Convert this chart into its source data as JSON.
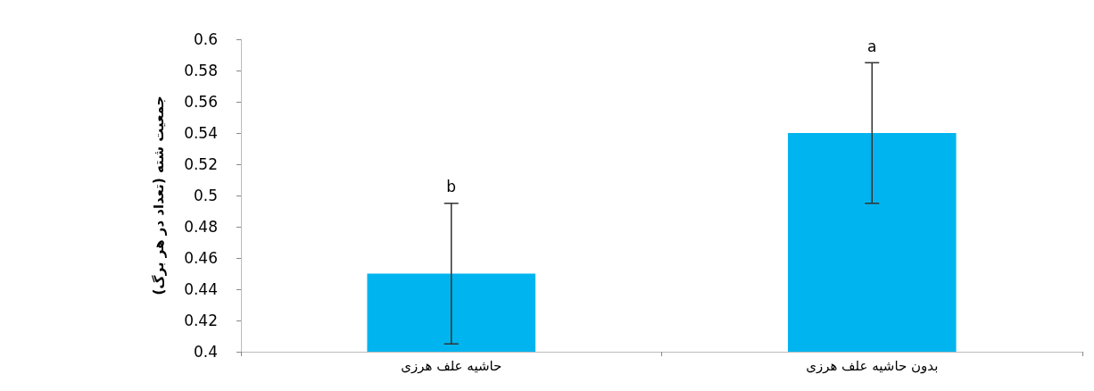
{
  "chart_data": {
    "type": "bar",
    "ylabel": "جمعیت شته (تعداد در هر برگ)",
    "categories": [
      "حاشیه علف هرزی",
      "بدون حاشیه علف هرزی"
    ],
    "values": [
      0.45,
      0.54
    ],
    "color": "#00b5ef",
    "errors": [
      0.045,
      0.045
    ],
    "ylim": [
      0.4,
      0.6
    ],
    "yticks": [
      0.4,
      0.42,
      0.44,
      0.46,
      0.48,
      0.5,
      0.52,
      0.54,
      0.56,
      0.58,
      0.6
    ],
    "grid": false,
    "annotations": [
      "b",
      "a"
    ]
  }
}
